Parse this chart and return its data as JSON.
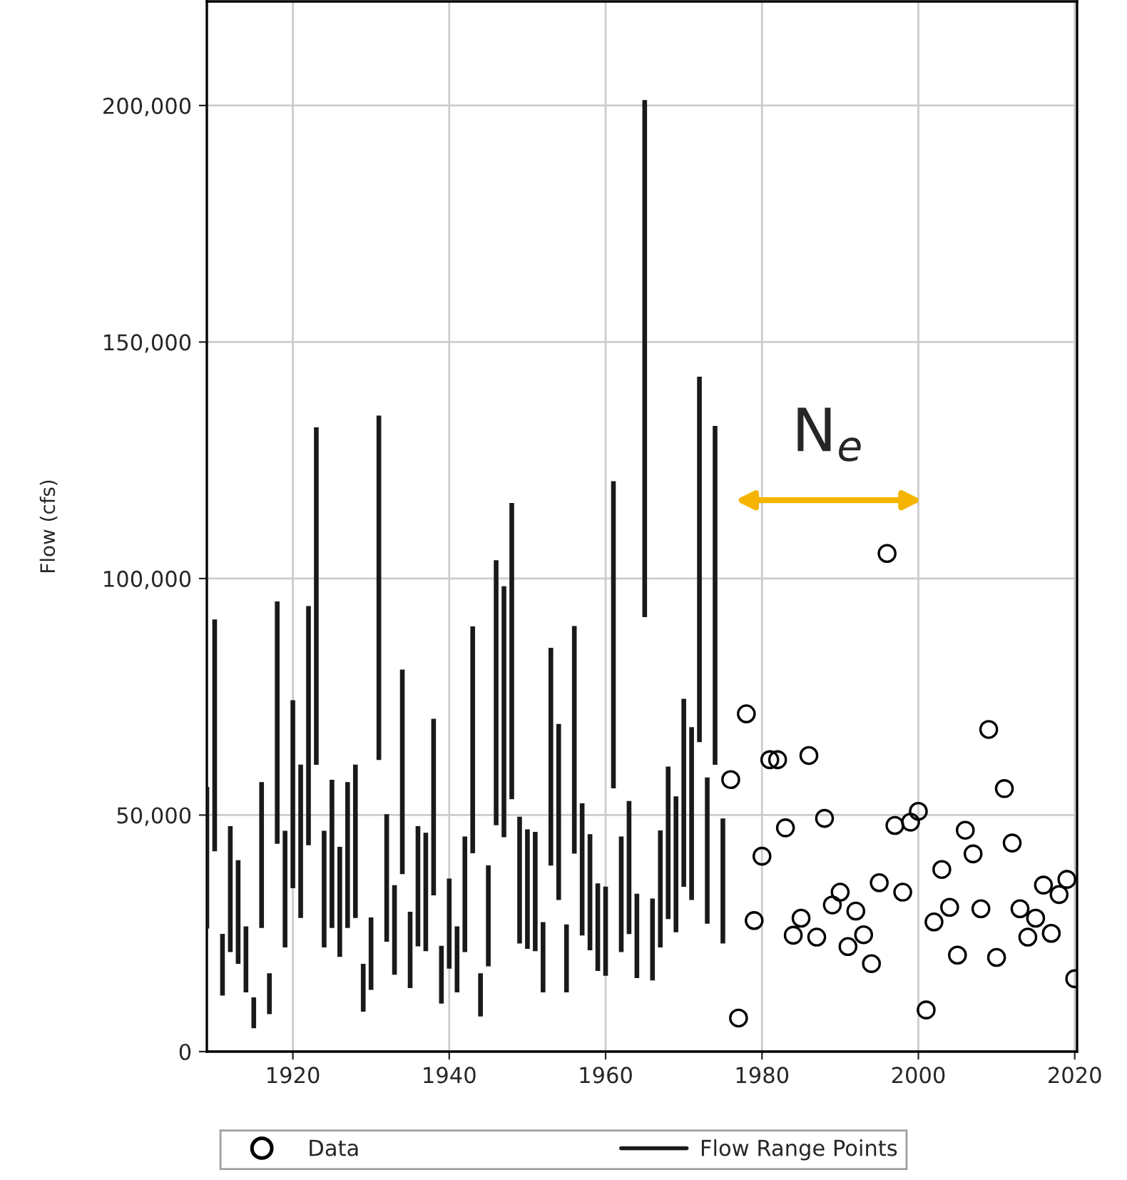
{
  "chart_data": {
    "type": "bar",
    "ylabel": "Flow (cfs)",
    "xlim": [
      1909,
      2020.3
    ],
    "xticks": [
      1920,
      1940,
      1960,
      1980,
      2000,
      2020
    ],
    "ylim": [
      0,
      222000
    ],
    "yticks": [
      0,
      {
        "value": 50000,
        "label": "50,000"
      },
      {
        "value": 100000,
        "label": "100,000"
      },
      {
        "value": 150000,
        "label": "150,000"
      },
      {
        "value": 200000,
        "label": "200,000"
      }
    ],
    "grid": true,
    "legend": "bottom",
    "annotations": [
      "N$_{e}$"
    ],
    "series": [
      {
        "name": "Data",
        "type": "scatter",
        "marker": "circle",
        "color": "#000000",
        "x": [
          1976,
          1977,
          1978,
          1979,
          1980,
          1981,
          1982,
          1983,
          1984,
          1985,
          1986,
          1987,
          1988,
          1989,
          1990,
          1991,
          1992,
          1993,
          1994,
          1995,
          1996,
          1997,
          1998,
          1999,
          2000,
          2001,
          2002,
          2003,
          2004,
          2005,
          2006,
          2007,
          2008,
          2009,
          2010,
          2011,
          2012,
          2013,
          2014,
          2015,
          2016,
          2017,
          2018,
          2019,
          2020
        ],
        "values": [
          57500,
          7100,
          71400,
          27700,
          41300,
          61700,
          61700,
          47300,
          24600,
          28200,
          62600,
          24200,
          49300,
          31000,
          33700,
          22200,
          29700,
          24700,
          18600,
          35700,
          105300,
          47800,
          33700,
          48500,
          50800,
          8800,
          27400,
          38500,
          30500,
          20400,
          46800,
          41800,
          30200,
          68100,
          19900,
          55600,
          44100,
          30200,
          24200,
          28200,
          35200,
          25000,
          33200,
          36400,
          15400
        ]
      },
      {
        "name": "Flow Range Points",
        "color": "#1a1a1a",
        "x": [
          1909,
          1910,
          1911,
          1912,
          1913,
          1914,
          1915,
          1916,
          1917,
          1918,
          1919,
          1920,
          1921,
          1922,
          1923,
          1924,
          1925,
          1926,
          1927,
          1928,
          1929,
          1930,
          1931,
          1932,
          1933,
          1934,
          1935,
          1936,
          1937,
          1938,
          1939,
          1940,
          1941,
          1942,
          1943,
          1944,
          1945,
          1946,
          1947,
          1948,
          1949,
          1950,
          1951,
          1952,
          1953,
          1954,
          1955,
          1956,
          1957,
          1958,
          1959,
          1960,
          1961,
          1962,
          1963,
          1964,
          1965,
          1966,
          1967,
          1968,
          1969,
          1970,
          1971,
          1972,
          1973,
          1974,
          1975
        ],
        "base": [
          26200,
          42500,
          12000,
          21200,
          18700,
          12700,
          5100,
          26300,
          8100,
          44100,
          22200,
          34700,
          28400,
          43800,
          60800,
          22200,
          26300,
          20200,
          26300,
          28400,
          8600,
          13200,
          61800,
          23400,
          16400,
          37700,
          13600,
          22400,
          21400,
          33200,
          10300,
          17700,
          12700,
          21200,
          42100,
          7600,
          18200,
          48000,
          45500,
          53500,
          23000,
          21900,
          21400,
          12700,
          39500,
          32200,
          12700,
          42000,
          24700,
          21600,
          17200,
          16200,
          55800,
          21200,
          25000,
          15700,
          92000,
          15200,
          22200,
          28200,
          25400,
          35000,
          32200,
          65600,
          27200,
          60800,
          23000
        ],
        "values": [
          29600,
          48700,
          12700,
          26300,
          21600,
          13600,
          6200,
          30500,
          8300,
          50900,
          24300,
          39400,
          32100,
          50200,
          71000,
          24300,
          31000,
          22900,
          30500,
          32100,
          9800,
          15000,
          72500,
          26600,
          18600,
          42900,
          15800,
          25100,
          24700,
          37000,
          11900,
          18700,
          13600,
          24100,
          47600,
          8800,
          21000,
          55700,
          52700,
          62300,
          26500,
          24900,
          24900,
          14500,
          45700,
          36900,
          14000,
          47800,
          27600,
          24200,
          18200,
          18500,
          64600,
          24100,
          27800,
          17500,
          109000,
          17000,
          24400,
          31900,
          28400,
          39400,
          36200,
          76900,
          30600,
          71300,
          26100
        ]
      }
    ]
  }
}
